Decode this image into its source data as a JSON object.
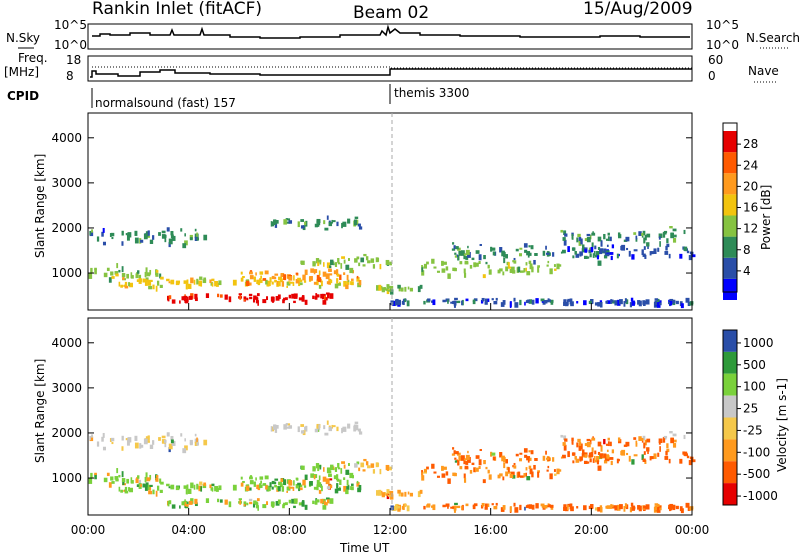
{
  "header": {
    "station": "Rankin Inlet (fitACF)",
    "beam": "Beam 02",
    "date": "15/Aug/2009"
  },
  "sky_panel": {
    "left_label": "N.Sky",
    "right_label": "N.Search",
    "left_ticks": [
      "10^5",
      "10^0"
    ],
    "right_ticks": [
      "10^5",
      "10^0"
    ]
  },
  "freq_panel": {
    "left_label_1": "Freq.",
    "left_label_2": "[MHz]",
    "right_label": "Nave",
    "left_ticks": [
      "18",
      "8"
    ],
    "right_ticks": [
      "60",
      "0"
    ]
  },
  "cpid_panel": {
    "label": "CPID",
    "segments": [
      {
        "text": "normalsound (fast) 157"
      },
      {
        "text": "themis 3300"
      }
    ]
  },
  "colors": {
    "power": [
      "#0000ff",
      "#2a4ea8",
      "#2e8b57",
      "#86c341",
      "#f2c40f",
      "#ff9a1e",
      "#ff5a00",
      "#e60000"
    ],
    "velocity": [
      "#e60000",
      "#ff5a00",
      "#ff9a1e",
      "#f5c84a",
      "#c8c8c8",
      "#7ad13b",
      "#2e9a3a",
      "#2a4ea8"
    ]
  },
  "chart_data": [
    {
      "type": "heatmap",
      "quantity": "power",
      "ylabel": "Slant Range [km]",
      "colorbar_label": "Power [dB]",
      "colorbar_ticks": [
        "4",
        "8",
        "12",
        "16",
        "20",
        "24",
        "28"
      ],
      "y_ticks": [
        "1000",
        "2000",
        "3000",
        "4000"
      ],
      "ylim": [
        180,
        4550
      ],
      "xlim": [
        "00:00",
        "24:00"
      ],
      "grid": false
    },
    {
      "type": "heatmap",
      "quantity": "velocity",
      "ylabel": "Slant Range [km]",
      "colorbar_label": "Velocity [m s-1]",
      "colorbar_ticks": [
        "1000",
        "500",
        "100",
        "25",
        "-25",
        "-100",
        "-500",
        "-1000"
      ],
      "y_ticks": [
        "1000",
        "2000",
        "3000",
        "4000"
      ],
      "ylim": [
        180,
        4550
      ],
      "xlim": [
        "00:00",
        "24:00"
      ],
      "xlabel": "Time UT",
      "x_ticks": [
        "00:00",
        "04:00",
        "08:00",
        "12:00",
        "16:00",
        "20:00",
        "00:00"
      ],
      "grid": false
    }
  ]
}
